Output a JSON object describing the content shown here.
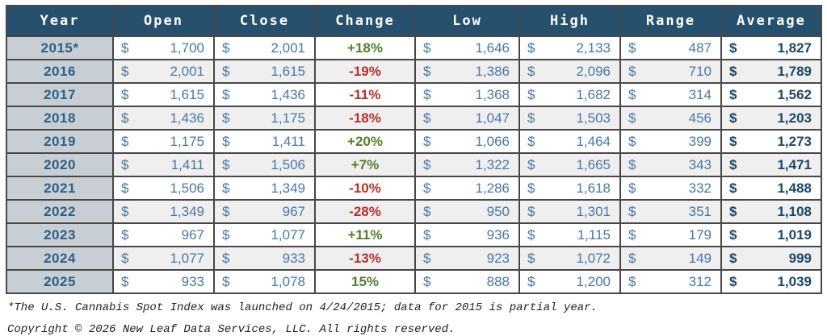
{
  "table": {
    "currency_symbol": "$",
    "columns": [
      {
        "key": "year",
        "label": "Year"
      },
      {
        "key": "open",
        "label": "Open"
      },
      {
        "key": "close",
        "label": "Close"
      },
      {
        "key": "change",
        "label": "Change"
      },
      {
        "key": "low",
        "label": "Low"
      },
      {
        "key": "high",
        "label": "High"
      },
      {
        "key": "range",
        "label": "Range"
      },
      {
        "key": "average",
        "label": "Average"
      }
    ],
    "rows": [
      {
        "year": "2015*",
        "open": "1,700",
        "close": "2,001",
        "change": "+18%",
        "change_dir": "up",
        "low": "1,646",
        "high": "2,133",
        "range": "487",
        "average": "1,827"
      },
      {
        "year": "2016",
        "open": "2,001",
        "close": "1,615",
        "change": "-19%",
        "change_dir": "down",
        "low": "1,386",
        "high": "2,096",
        "range": "710",
        "average": "1,789"
      },
      {
        "year": "2017",
        "open": "1,615",
        "close": "1,436",
        "change": "-11%",
        "change_dir": "down",
        "low": "1,368",
        "high": "1,682",
        "range": "314",
        "average": "1,562"
      },
      {
        "year": "2018",
        "open": "1,436",
        "close": "1,175",
        "change": "-18%",
        "change_dir": "down",
        "low": "1,047",
        "high": "1,503",
        "range": "456",
        "average": "1,203"
      },
      {
        "year": "2019",
        "open": "1,175",
        "close": "1,411",
        "change": "+20%",
        "change_dir": "up",
        "low": "1,066",
        "high": "1,464",
        "range": "399",
        "average": "1,273"
      },
      {
        "year": "2020",
        "open": "1,411",
        "close": "1,506",
        "change": "+7%",
        "change_dir": "up",
        "low": "1,322",
        "high": "1,665",
        "range": "343",
        "average": "1,471"
      },
      {
        "year": "2021",
        "open": "1,506",
        "close": "1,349",
        "change": "-10%",
        "change_dir": "down",
        "low": "1,286",
        "high": "1,618",
        "range": "332",
        "average": "1,488"
      },
      {
        "year": "2022",
        "open": "1,349",
        "close": "967",
        "change": "-28%",
        "change_dir": "down",
        "low": "950",
        "high": "1,301",
        "range": "351",
        "average": "1,108"
      },
      {
        "year": "2023",
        "open": "967",
        "close": "1,077",
        "change": "+11%",
        "change_dir": "up",
        "low": "936",
        "high": "1,115",
        "range": "179",
        "average": "1,019"
      },
      {
        "year": "2024",
        "open": "1,077",
        "close": "933",
        "change": "-13%",
        "change_dir": "down",
        "low": "923",
        "high": "1,072",
        "range": "149",
        "average": "999"
      },
      {
        "year": "2025",
        "open": "933",
        "close": "1,078",
        "change": "15%",
        "change_dir": "up",
        "low": "888",
        "high": "1,200",
        "range": "312",
        "average": "1,039"
      }
    ]
  },
  "footnote": "*The U.S. Cannabis Spot Index was launched on 4/24/2015; data for 2015 is partial year.",
  "copyright": "Copyright © 2026 New Leaf Data Services, LLC. All rights reserved.",
  "colors": {
    "header_bg": "#26506e",
    "header_text": "#ffffff",
    "year_bg": "#c8cfd4",
    "year_text": "#2e5f86",
    "data_text": "#4878a5",
    "average_text": "#1b4868",
    "positive": "#567d2b",
    "negative": "#b5302a",
    "row_stripe": "#efefef",
    "border": "#474747"
  }
}
